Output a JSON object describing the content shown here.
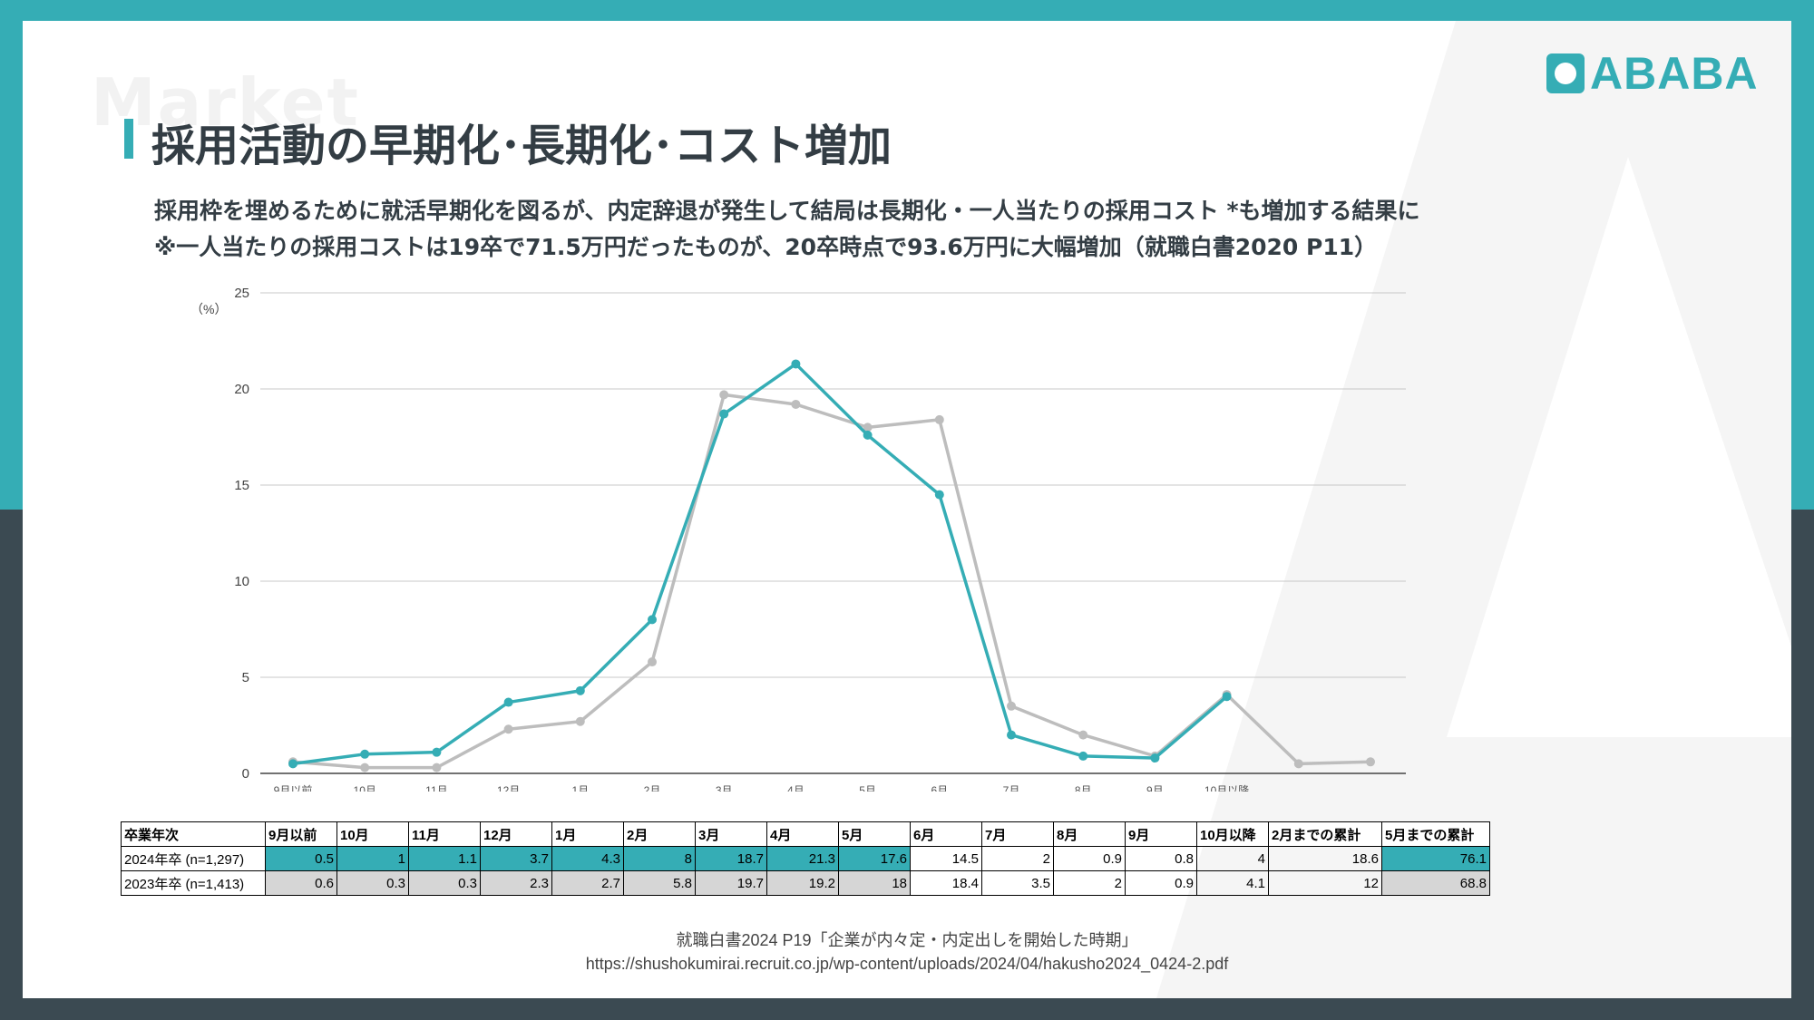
{
  "section_label": "Market",
  "title": "採用活動の早期化･長期化･コスト増加",
  "subtitle_lines": [
    "採用枠を埋めるために就活早期化を図るが、内定辞退が発生して結局は長期化・一人当たりの採用コスト *も増加する結果に",
    "※一人当たりの採用コストは19卒で71.5万円だったものが、20卒時点で93.6万円に大幅増加（就職白書2020 P11）"
  ],
  "logo": {
    "text": "ABABA",
    "icon": "dog-face-icon"
  },
  "colors": {
    "accent": "#35adb5",
    "dark": "#3b4a52",
    "series_2023": "#bdbdbd",
    "grid": "#c8c8c8"
  },
  "chart_data": {
    "type": "line",
    "unit_label": "（%）",
    "ylim": [
      0,
      25
    ],
    "yticks": [
      0,
      5,
      10,
      15,
      20,
      25
    ],
    "grid": true,
    "categories": [
      "9月以前",
      "10月",
      "11月",
      "12月",
      "1月",
      "2月",
      "3月",
      "4月",
      "5月",
      "6月",
      "7月",
      "8月",
      "9月",
      "10月以降",
      "",
      ""
    ],
    "series": [
      {
        "name": "2024年卒 (n=1,297)",
        "color": "#35adb5",
        "values": [
          0.5,
          1,
          1.1,
          3.7,
          4.3,
          8,
          18.7,
          21.3,
          17.6,
          14.5,
          2,
          0.9,
          0.8,
          4,
          null,
          null
        ]
      },
      {
        "name": "2023年卒 (n=1,413)",
        "color": "#bdbdbd",
        "values": [
          0.6,
          0.3,
          0.3,
          2.3,
          2.7,
          5.8,
          19.7,
          19.2,
          18,
          18.4,
          3.5,
          2,
          0.9,
          4.1,
          0.5,
          0.6
        ]
      }
    ]
  },
  "table": {
    "headers": [
      "卒業年次",
      "9月以前",
      "10月",
      "11月",
      "12月",
      "1月",
      "2月",
      "3月",
      "4月",
      "5月",
      "6月",
      "7月",
      "8月",
      "9月",
      "10月以降",
      "2月までの累計",
      "5月までの累計"
    ],
    "rows": [
      {
        "label": "2024年卒 (n=1,297)",
        "values": [
          "0.5",
          "1",
          "1.1",
          "3.7",
          "4.3",
          "8",
          "18.7",
          "21.3",
          "17.6",
          "14.5",
          "2",
          "0.9",
          "0.8",
          "4",
          "18.6",
          "76.1"
        ]
      },
      {
        "label": "2023年卒 (n=1,413)",
        "values": [
          "0.6",
          "0.3",
          "0.3",
          "2.3",
          "2.7",
          "5.8",
          "19.7",
          "19.2",
          "18",
          "18.4",
          "3.5",
          "2",
          "0.9",
          "4.1",
          "12",
          "68.8"
        ]
      }
    ]
  },
  "source": {
    "line1": "就職白書2024 P19「企業が内々定・内定出しを開始した時期」",
    "line2": "https://shushokumirai.recruit.co.jp/wp-content/uploads/2024/04/hakusho2024_0424-2.pdf"
  }
}
